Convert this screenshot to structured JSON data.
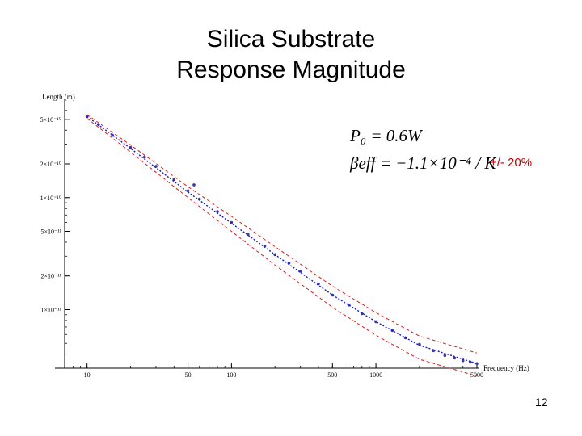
{
  "slide": {
    "title_line1": "Silica Substrate",
    "title_line2": "Response Magnitude",
    "page_number": "12"
  },
  "annotations": {
    "power_eq": "P₀ = 0.6W",
    "beta_eq": "βeff = −1.1×10⁻⁴ / K",
    "tolerance_note": "+/- 20%"
  },
  "colors": {
    "data_points": "#3a3aa0",
    "fit_line": "#1a1ad0",
    "bound_lines": "#d62020",
    "tolerance_text": "#c00000"
  },
  "chart_data": {
    "type": "line",
    "title": "",
    "xlabel": "Frequency (Hz)",
    "ylabel": "Length (m)",
    "xscale": "log",
    "yscale": "log",
    "xlim": [
      7,
      5000
    ],
    "ylim": [
      3e-12,
      6.5e-10
    ],
    "x_ticks": [
      {
        "value": 10,
        "label": "10"
      },
      {
        "value": 50,
        "label": "50"
      },
      {
        "value": 100,
        "label": "100"
      },
      {
        "value": 500,
        "label": "500"
      },
      {
        "value": 1000,
        "label": "1000"
      },
      {
        "value": 5000,
        "label": "5000"
      }
    ],
    "y_ticks": [
      {
        "value": 5e-10,
        "label": "5×10⁻¹⁰"
      },
      {
        "value": 2e-10,
        "label": "2×10⁻¹⁰"
      },
      {
        "value": 1e-10,
        "label": "1×10⁻¹⁰"
      },
      {
        "value": 5e-11,
        "label": "5×10⁻¹¹"
      },
      {
        "value": 2e-11,
        "label": "2×10⁻¹¹"
      },
      {
        "value": 1e-11,
        "label": "1×10⁻¹¹"
      }
    ],
    "series": [
      {
        "role": "measured",
        "style": "points",
        "x": [
          10,
          12,
          15,
          20,
          25,
          30,
          40,
          50,
          60,
          80,
          100,
          130,
          170,
          200,
          250,
          300,
          400,
          500,
          650,
          800,
          1000,
          1300,
          1600,
          2000,
          2500,
          3000,
          3500,
          4000,
          4500,
          5000
        ],
        "y": [
          5.3e-10,
          4.5e-10,
          3.6e-10,
          2.8e-10,
          2.3e-10,
          1.9e-10,
          1.45e-10,
          1.15e-10,
          9.7e-11,
          7.5e-11,
          6e-11,
          4.7e-11,
          3.7e-11,
          3.1e-11,
          2.6e-11,
          2.2e-11,
          1.7e-11,
          1.35e-11,
          1.1e-11,
          9.2e-12,
          7.8e-12,
          6.5e-12,
          5.6e-12,
          4.9e-12,
          4.3e-12,
          3.9e-12,
          3.7e-12,
          3.5e-12,
          3.4e-12,
          3.3e-12
        ]
      },
      {
        "role": "outlier",
        "style": "points",
        "x": [
          55
        ],
        "y": [
          1.3e-10
        ]
      },
      {
        "role": "model",
        "style": "solid",
        "x": [
          10,
          20,
          50,
          100,
          200,
          500,
          1000,
          2000,
          5000
        ],
        "y": [
          5.3e-10,
          2.75e-10,
          1.12e-10,
          5.9e-11,
          3.1e-11,
          1.35e-11,
          7.8e-12,
          4.8e-12,
          3.3e-12
        ]
      },
      {
        "role": "upper_bound",
        "style": "dashed",
        "x": [
          10,
          20,
          50,
          100,
          200,
          500,
          1000,
          2000,
          5000
        ],
        "y": [
          5.5e-10,
          2.95e-10,
          1.25e-10,
          6.8e-11,
          3.65e-11,
          1.62e-11,
          9.4e-12,
          5.8e-12,
          4.1e-12
        ]
      },
      {
        "role": "lower_bound",
        "style": "dashed",
        "x": [
          10,
          20,
          50,
          100,
          200,
          500,
          1000,
          2000,
          5000
        ],
        "y": [
          5.1e-10,
          2.55e-10,
          1e-10,
          5e-11,
          2.5e-11,
          1.05e-11,
          5.9e-12,
          3.6e-12,
          2.55e-12
        ]
      }
    ]
  }
}
